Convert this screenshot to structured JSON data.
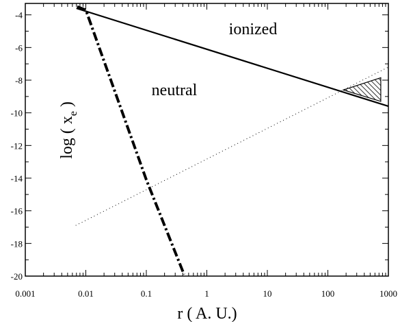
{
  "chart_data": {
    "type": "line",
    "xlabel": "r ( A. U.)",
    "ylabel_main": "log ( x",
    "ylabel_sub": "e",
    "ylabel_close": ")",
    "xscale": "log",
    "xlim": [
      0.001,
      1000
    ],
    "ylim": [
      -20,
      -3.3
    ],
    "x_ticks": [
      0.001,
      0.01,
      0.1,
      1,
      10,
      100,
      1000
    ],
    "x_tick_labels": [
      "0.001",
      "0.01",
      "0.1",
      "1",
      "10",
      "100",
      "1000"
    ],
    "y_ticks": [
      -4,
      -6,
      -8,
      -10,
      -12,
      -14,
      -16,
      -18,
      -20
    ],
    "y_tick_labels": [
      "-4",
      "-6",
      "-8",
      "-10",
      "-12",
      "-14",
      "-16",
      "-18",
      "-20"
    ],
    "grid": false,
    "annotations": [
      {
        "text": "ionized",
        "x": 30,
        "y": -4.8
      },
      {
        "text": "neutral",
        "x": 0.55,
        "y": -9.2
      }
    ],
    "series": [
      {
        "style": "solid",
        "x": [
          0.007,
          1000
        ],
        "y": [
          -3.6,
          -9.6
        ]
      },
      {
        "style": "dash-dot",
        "x": [
          0.0072,
          0.01,
          0.1,
          0.42
        ],
        "y": [
          -3.5,
          -3.7,
          -14.1,
          -19.9
        ]
      },
      {
        "style": "dotted",
        "x": [
          0.0068,
          1000
        ],
        "y": [
          -16.9,
          -7.2
        ]
      }
    ],
    "hatched_region": {
      "x": [
        180,
        750,
        750
      ],
      "y": [
        -8.6,
        -7.85,
        -9.3
      ]
    }
  }
}
